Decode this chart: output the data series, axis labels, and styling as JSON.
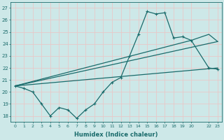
{
  "xlabel": "Humidex (Indice chaleur)",
  "background_color": "#cde8e8",
  "grid_color": "#e8c8c8",
  "line_color": "#1a6b6b",
  "xlim": [
    -0.5,
    23.5
  ],
  "ylim": [
    17.5,
    27.5
  ],
  "xtick_positions": [
    0,
    1,
    2,
    3,
    4,
    5,
    6,
    7,
    8,
    9,
    10,
    11,
    12,
    13,
    14,
    15,
    16,
    17,
    18,
    19,
    20,
    22,
    23
  ],
  "xtick_labels": [
    "0",
    "1",
    "2",
    "3",
    "4",
    "5",
    "6",
    "7",
    "8",
    "9",
    "10",
    "11",
    "12",
    "13",
    "14",
    "15",
    "16",
    "17",
    "18",
    "19",
    "20",
    "22",
    "23"
  ],
  "yticks": [
    18,
    19,
    20,
    21,
    22,
    23,
    24,
    25,
    26,
    27
  ],
  "series1_x": [
    0,
    1,
    2,
    3,
    4,
    5,
    6,
    7,
    8,
    9,
    10,
    11,
    12,
    13,
    14,
    15,
    16,
    17,
    18,
    19,
    20,
    22,
    23
  ],
  "series1_y": [
    20.5,
    20.3,
    20.0,
    19.0,
    18.0,
    18.7,
    18.5,
    17.8,
    18.5,
    19.0,
    20.0,
    20.8,
    21.2,
    23.0,
    24.8,
    26.7,
    26.5,
    26.6,
    24.5,
    24.6,
    24.3,
    22.0,
    21.9
  ],
  "series2_x": [
    0,
    23
  ],
  "series2_y": [
    20.5,
    22.0
  ],
  "series3_x": [
    0,
    23
  ],
  "series3_y": [
    20.5,
    24.2
  ],
  "series4_x": [
    0,
    20,
    22,
    23
  ],
  "series4_y": [
    20.5,
    24.3,
    24.8,
    24.2
  ]
}
